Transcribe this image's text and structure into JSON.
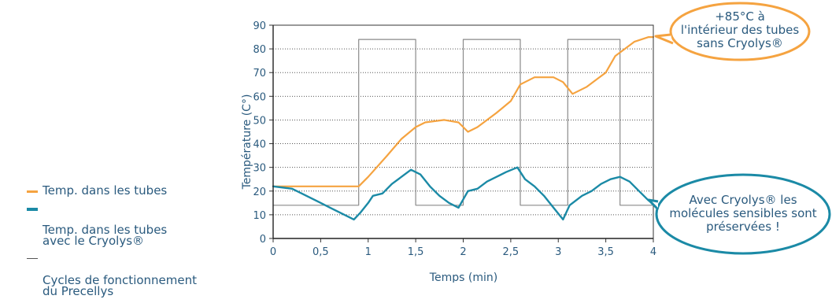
{
  "colors": {
    "orange": "#f5a340",
    "teal": "#1b8aa6",
    "grey": "#8a8a8a",
    "text": "#2a5a7e"
  },
  "legend": [
    {
      "label": "Temp. dans les tubes",
      "color": "#f5a340"
    },
    {
      "label": "Temp. dans les tubes\navec le Cryolys®",
      "color": "#1b8aa6"
    },
    {
      "label": "Cycles de fonctionnement\ndu Precellys",
      "color": "#8a8a8a"
    }
  ],
  "callouts": {
    "top": "+85°C à\nl'intérieur des tubes\nsans Cryolys®",
    "bottom": "Avec Cryolys® les\nmolécules sensibles sont\npréservées !"
  },
  "chart_data": {
    "type": "line",
    "xlabel": "Temps (min)",
    "ylabel": "Température (C°)",
    "xlim": [
      0,
      4
    ],
    "ylim": [
      0,
      90
    ],
    "x_ticks": [
      "0",
      "0,5",
      "1",
      "1,5",
      "2",
      "2,5",
      "3",
      "3,5",
      "4"
    ],
    "y_ticks": [
      "0",
      "10",
      "20",
      "30",
      "40",
      "50",
      "60",
      "70",
      "80",
      "90"
    ],
    "grid": "horizontal dotted",
    "legend_position": "left",
    "series": [
      {
        "name": "Temp. dans les tubes",
        "color": "#f5a340",
        "points": [
          [
            0,
            22
          ],
          [
            0.5,
            22
          ],
          [
            0.9,
            22
          ],
          [
            1.0,
            26
          ],
          [
            1.2,
            35
          ],
          [
            1.35,
            42
          ],
          [
            1.5,
            47
          ],
          [
            1.6,
            49
          ],
          [
            1.8,
            50
          ],
          [
            1.95,
            49
          ],
          [
            2.05,
            45
          ],
          [
            2.15,
            47
          ],
          [
            2.35,
            53
          ],
          [
            2.5,
            58
          ],
          [
            2.6,
            65
          ],
          [
            2.75,
            68
          ],
          [
            2.95,
            68
          ],
          [
            3.05,
            66
          ],
          [
            3.15,
            61
          ],
          [
            3.3,
            64
          ],
          [
            3.5,
            70
          ],
          [
            3.6,
            77
          ],
          [
            3.7,
            80
          ],
          [
            3.8,
            83
          ],
          [
            3.95,
            85
          ],
          [
            4.0,
            85
          ]
        ]
      },
      {
        "name": "Temp. dans les tubes\navec le Cryolys®",
        "color": "#1b8aa6",
        "points": [
          [
            0,
            22
          ],
          [
            0.2,
            21
          ],
          [
            0.35,
            18
          ],
          [
            0.5,
            15
          ],
          [
            0.6,
            13
          ],
          [
            0.7,
            11
          ],
          [
            0.8,
            9
          ],
          [
            0.85,
            8
          ],
          [
            0.92,
            11
          ],
          [
            1.0,
            15
          ],
          [
            1.05,
            18
          ],
          [
            1.15,
            19
          ],
          [
            1.25,
            23
          ],
          [
            1.35,
            26
          ],
          [
            1.45,
            29
          ],
          [
            1.55,
            27
          ],
          [
            1.65,
            22
          ],
          [
            1.75,
            18
          ],
          [
            1.85,
            15
          ],
          [
            1.95,
            13
          ],
          [
            2.05,
            20
          ],
          [
            2.15,
            21
          ],
          [
            2.25,
            24
          ],
          [
            2.35,
            26
          ],
          [
            2.45,
            28
          ],
          [
            2.57,
            30
          ],
          [
            2.65,
            25
          ],
          [
            2.75,
            22
          ],
          [
            2.85,
            18
          ],
          [
            2.95,
            13
          ],
          [
            3.05,
            8
          ],
          [
            3.12,
            14
          ],
          [
            3.25,
            18
          ],
          [
            3.35,
            20
          ],
          [
            3.45,
            23
          ],
          [
            3.55,
            25
          ],
          [
            3.65,
            26
          ],
          [
            3.75,
            24
          ],
          [
            3.85,
            20
          ],
          [
            3.95,
            16
          ],
          [
            4.0,
            15
          ]
        ]
      },
      {
        "name": "Cycles de fonctionnement\ndu Precellys",
        "color": "#8a8a8a",
        "points": [
          [
            0,
            14
          ],
          [
            0.9,
            14
          ],
          [
            0.9,
            84
          ],
          [
            1.5,
            84
          ],
          [
            1.5,
            14
          ],
          [
            2.0,
            14
          ],
          [
            2.0,
            84
          ],
          [
            2.6,
            84
          ],
          [
            2.6,
            14
          ],
          [
            3.1,
            14
          ],
          [
            3.1,
            84
          ],
          [
            3.65,
            84
          ],
          [
            3.65,
            14
          ],
          [
            4.0,
            14
          ]
        ]
      }
    ]
  }
}
